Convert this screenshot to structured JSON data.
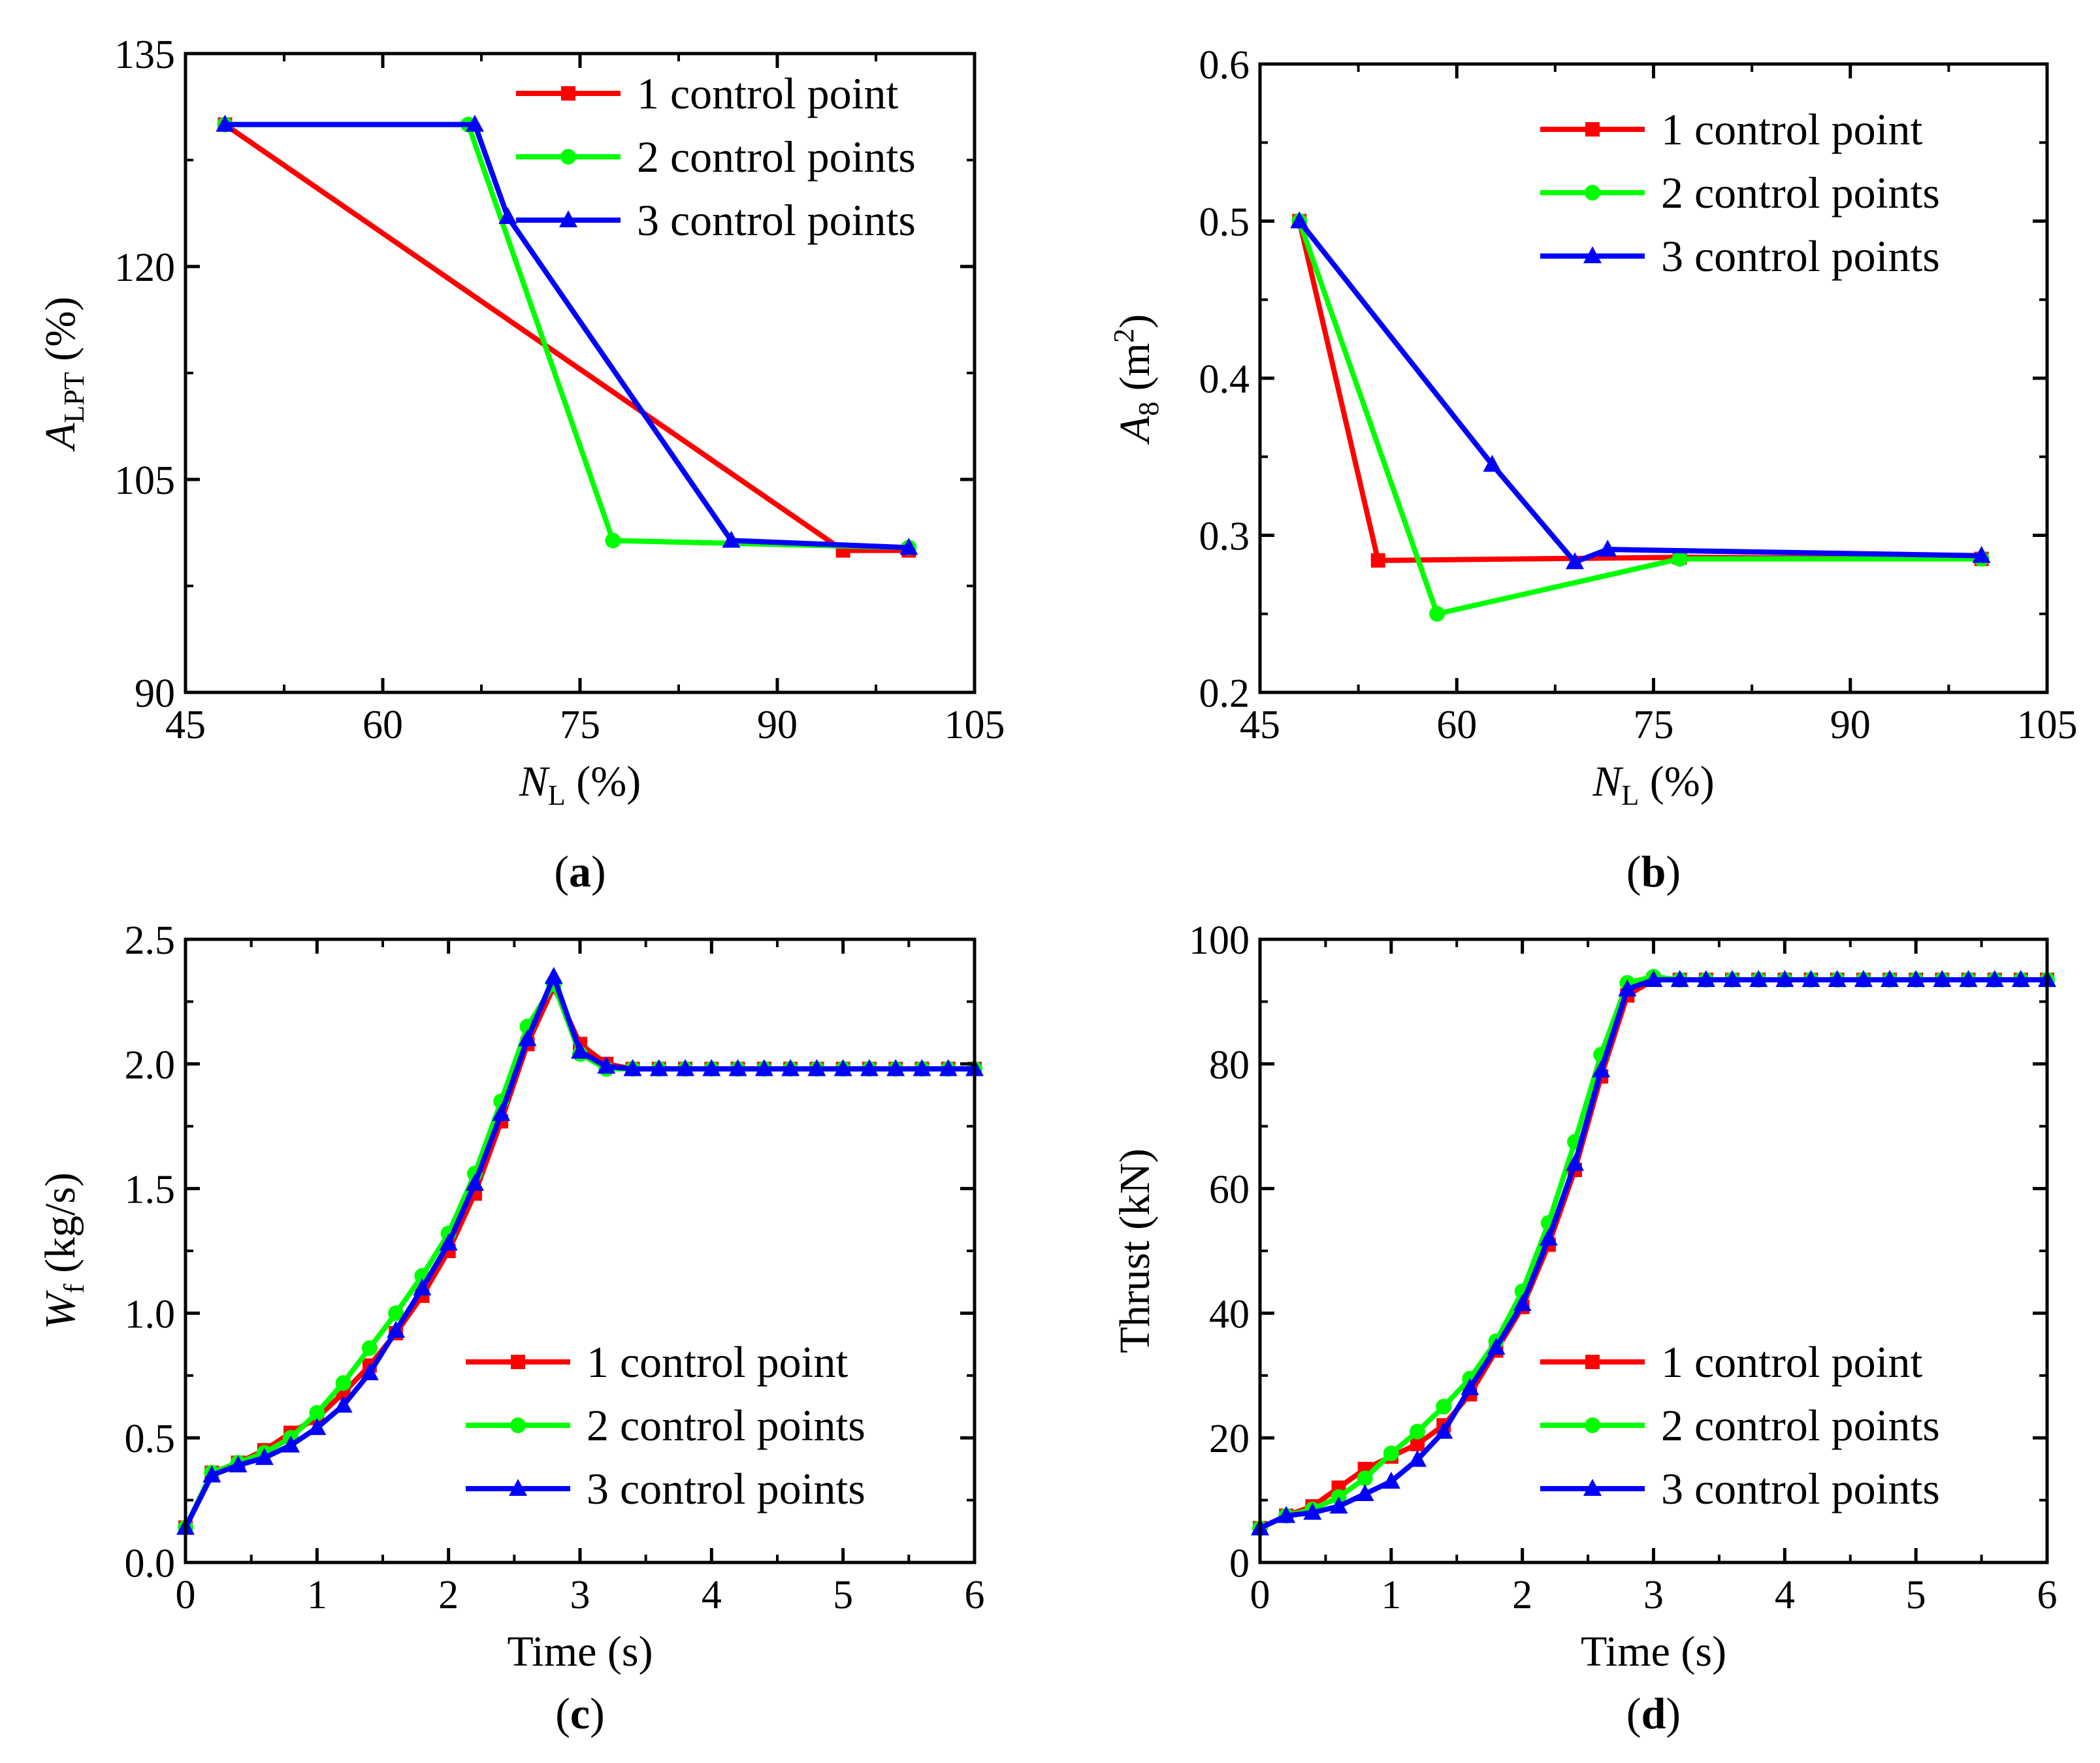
{
  "legend_labels": [
    "1 control point",
    "2 control points",
    "3 control points"
  ],
  "series_colors": [
    "#ff0000",
    "#00ff00",
    "#0000ff"
  ],
  "series_markers": [
    "square",
    "circle",
    "triangle"
  ],
  "chart_data": [
    {
      "id": "a",
      "type": "line",
      "caption": "a",
      "xlabel": {
        "main": "N",
        "sub": "L",
        "unit": " (%)"
      },
      "ylabel": {
        "main": "A",
        "sub": "LPT",
        "unit": " (%)"
      },
      "xlim": [
        45,
        105
      ],
      "ylim": [
        90,
        135
      ],
      "xticks": [
        45,
        60,
        75,
        90,
        105
      ],
      "yticks": [
        90,
        105,
        120,
        135
      ],
      "legend_position": "top-right",
      "series": [
        {
          "name": "1 control point",
          "x": [
            48,
            95,
            100
          ],
          "y": [
            130,
            100,
            100
          ]
        },
        {
          "name": "2 control points",
          "x": [
            48,
            66.5,
            77.5,
            100
          ],
          "y": [
            130,
            130,
            100.7,
            100.2
          ]
        },
        {
          "name": "3 control points",
          "x": [
            48,
            67,
            69.5,
            86.5,
            100
          ],
          "y": [
            130,
            130,
            123.5,
            100.7,
            100.2
          ]
        }
      ]
    },
    {
      "id": "b",
      "type": "line",
      "caption": "b",
      "xlabel": {
        "main": "N",
        "sub": "L",
        "unit": " (%)"
      },
      "ylabel": {
        "main": "A",
        "sub": "8",
        "unit": " (m",
        "sup": "2",
        "unit_end": ")"
      },
      "xlim": [
        45,
        105
      ],
      "ylim": [
        0.2,
        0.6
      ],
      "xticks": [
        45,
        60,
        75,
        90,
        105
      ],
      "yticks": [
        0.2,
        0.3,
        0.4,
        0.5,
        0.6
      ],
      "legend_position": "top-right",
      "series": [
        {
          "name": "1 control point",
          "x": [
            48,
            54,
            77,
            100
          ],
          "y": [
            0.5,
            0.284,
            0.286,
            0.285
          ]
        },
        {
          "name": "2 control points",
          "x": [
            48,
            58.5,
            77,
            100
          ],
          "y": [
            0.5,
            0.25,
            0.285,
            0.285
          ]
        },
        {
          "name": "3 control points",
          "x": [
            48,
            62.7,
            69,
            71.5,
            100
          ],
          "y": [
            0.5,
            0.345,
            0.283,
            0.291,
            0.287
          ]
        }
      ]
    },
    {
      "id": "c",
      "type": "line",
      "caption": "c",
      "xlabel": {
        "main": "Time",
        "sub": "",
        "unit": " (s)"
      },
      "ylabel": {
        "main": "W",
        "sub": "f",
        "unit": " (kg/s)"
      },
      "xlim": [
        0,
        6
      ],
      "ylim": [
        0,
        2.5
      ],
      "xticks": [
        0,
        1,
        2,
        3,
        4,
        5,
        6
      ],
      "yticks": [
        0.0,
        0.5,
        1.0,
        1.5,
        2.0,
        2.5
      ],
      "ytick_decimals": 1,
      "legend_position": "lower-right",
      "series": [
        {
          "name": "1 control point",
          "x": [
            0,
            0.2,
            0.4,
            0.6,
            0.8,
            1.0,
            1.2,
            1.4,
            1.6,
            1.8,
            2.0,
            2.2,
            2.4,
            2.6,
            2.8,
            3.0,
            3.2,
            3.4,
            3.6,
            3.8,
            4.0,
            4.2,
            4.4,
            4.6,
            4.8,
            5.0,
            5.2,
            5.4,
            5.6,
            5.8,
            6.0
          ],
          "y": [
            0.14,
            0.36,
            0.4,
            0.45,
            0.52,
            0.58,
            0.68,
            0.79,
            0.92,
            1.07,
            1.25,
            1.48,
            1.77,
            2.08,
            2.31,
            2.08,
            2.0,
            1.98,
            1.98,
            1.98,
            1.98,
            1.98,
            1.98,
            1.98,
            1.98,
            1.98,
            1.98,
            1.98,
            1.98,
            1.98,
            1.98
          ]
        },
        {
          "name": "2 control points",
          "x": [
            0,
            0.2,
            0.4,
            0.6,
            0.8,
            1.0,
            1.2,
            1.4,
            1.6,
            1.8,
            2.0,
            2.2,
            2.4,
            2.6,
            2.8,
            3.0,
            3.2,
            3.4,
            3.6,
            3.8,
            4.0,
            4.2,
            4.4,
            4.6,
            4.8,
            5.0,
            5.2,
            5.4,
            5.6,
            5.8,
            6.0
          ],
          "y": [
            0.14,
            0.36,
            0.4,
            0.44,
            0.5,
            0.6,
            0.72,
            0.86,
            1.0,
            1.15,
            1.32,
            1.56,
            1.85,
            2.15,
            2.32,
            2.04,
            1.98,
            1.98,
            1.98,
            1.98,
            1.98,
            1.98,
            1.98,
            1.98,
            1.98,
            1.98,
            1.98,
            1.98,
            1.98,
            1.98,
            1.98
          ]
        },
        {
          "name": "3 control points",
          "x": [
            0,
            0.2,
            0.4,
            0.6,
            0.8,
            1.0,
            1.2,
            1.4,
            1.6,
            1.8,
            2.0,
            2.2,
            2.4,
            2.6,
            2.8,
            3.0,
            3.2,
            3.4,
            3.6,
            3.8,
            4.0,
            4.2,
            4.4,
            4.6,
            4.8,
            5.0,
            5.2,
            5.4,
            5.6,
            5.8,
            6.0
          ],
          "y": [
            0.14,
            0.35,
            0.39,
            0.42,
            0.47,
            0.54,
            0.63,
            0.76,
            0.93,
            1.1,
            1.28,
            1.52,
            1.8,
            2.1,
            2.35,
            2.05,
            1.99,
            1.98,
            1.98,
            1.98,
            1.98,
            1.98,
            1.98,
            1.98,
            1.98,
            1.98,
            1.98,
            1.98,
            1.98,
            1.98,
            1.98
          ]
        }
      ]
    },
    {
      "id": "d",
      "type": "line",
      "caption": "d",
      "xlabel": {
        "main": "Time",
        "sub": "",
        "unit": " (s)"
      },
      "ylabel": {
        "main": "Thrust",
        "sub": "",
        "unit": " (kN)"
      },
      "xlim": [
        0,
        6
      ],
      "ylim": [
        0,
        100
      ],
      "xticks": [
        0,
        1,
        2,
        3,
        4,
        5,
        6
      ],
      "yticks": [
        0,
        20,
        40,
        60,
        80,
        100
      ],
      "legend_position": "lower-right",
      "series": [
        {
          "name": "1 control point",
          "x": [
            0,
            0.2,
            0.4,
            0.6,
            0.8,
            1.0,
            1.2,
            1.4,
            1.6,
            1.8,
            2.0,
            2.2,
            2.4,
            2.6,
            2.8,
            3.0,
            3.2,
            3.4,
            3.6,
            3.8,
            4.0,
            4.2,
            4.4,
            4.6,
            4.8,
            5.0,
            5.2,
            5.4,
            5.6,
            5.8,
            6.0
          ],
          "y": [
            5.5,
            7.5,
            9,
            12,
            15,
            17,
            19,
            22,
            27,
            34,
            41,
            51,
            63,
            78,
            91,
            93.5,
            93.5,
            93.5,
            93.5,
            93.5,
            93.5,
            93.5,
            93.5,
            93.5,
            93.5,
            93.5,
            93.5,
            93.5,
            93.5,
            93.5,
            93.5
          ]
        },
        {
          "name": "2 control points",
          "x": [
            0,
            0.2,
            0.4,
            0.6,
            0.8,
            1.0,
            1.2,
            1.4,
            1.6,
            1.8,
            2.0,
            2.2,
            2.4,
            2.6,
            2.8,
            3.0,
            3.2,
            3.4,
            3.6,
            3.8,
            4.0,
            4.2,
            4.4,
            4.6,
            4.8,
            5.0,
            5.2,
            5.4,
            5.6,
            5.8,
            6.0
          ],
          "y": [
            5.5,
            7.5,
            8.5,
            10.5,
            13.5,
            17.5,
            21,
            25,
            29.5,
            35.5,
            43.5,
            54.5,
            67.5,
            81.5,
            93,
            94,
            93.5,
            93.5,
            93.5,
            93.5,
            93.5,
            93.5,
            93.5,
            93.5,
            93.5,
            93.5,
            93.5,
            93.5,
            93.5,
            93.5,
            93.5
          ]
        },
        {
          "name": "3 control points",
          "x": [
            0,
            0.2,
            0.4,
            0.6,
            0.8,
            1.0,
            1.2,
            1.4,
            1.6,
            1.8,
            2.0,
            2.2,
            2.4,
            2.6,
            2.8,
            3.0,
            3.2,
            3.4,
            3.6,
            3.8,
            4.0,
            4.2,
            4.4,
            4.6,
            4.8,
            5.0,
            5.2,
            5.4,
            5.6,
            5.8,
            6.0
          ],
          "y": [
            5.5,
            7.5,
            8,
            9,
            11,
            13,
            16.5,
            21,
            28,
            34.5,
            41.5,
            52,
            64,
            79,
            92,
            93.5,
            93.5,
            93.5,
            93.5,
            93.5,
            93.5,
            93.5,
            93.5,
            93.5,
            93.5,
            93.5,
            93.5,
            93.5,
            93.5,
            93.5,
            93.5
          ]
        }
      ]
    }
  ]
}
